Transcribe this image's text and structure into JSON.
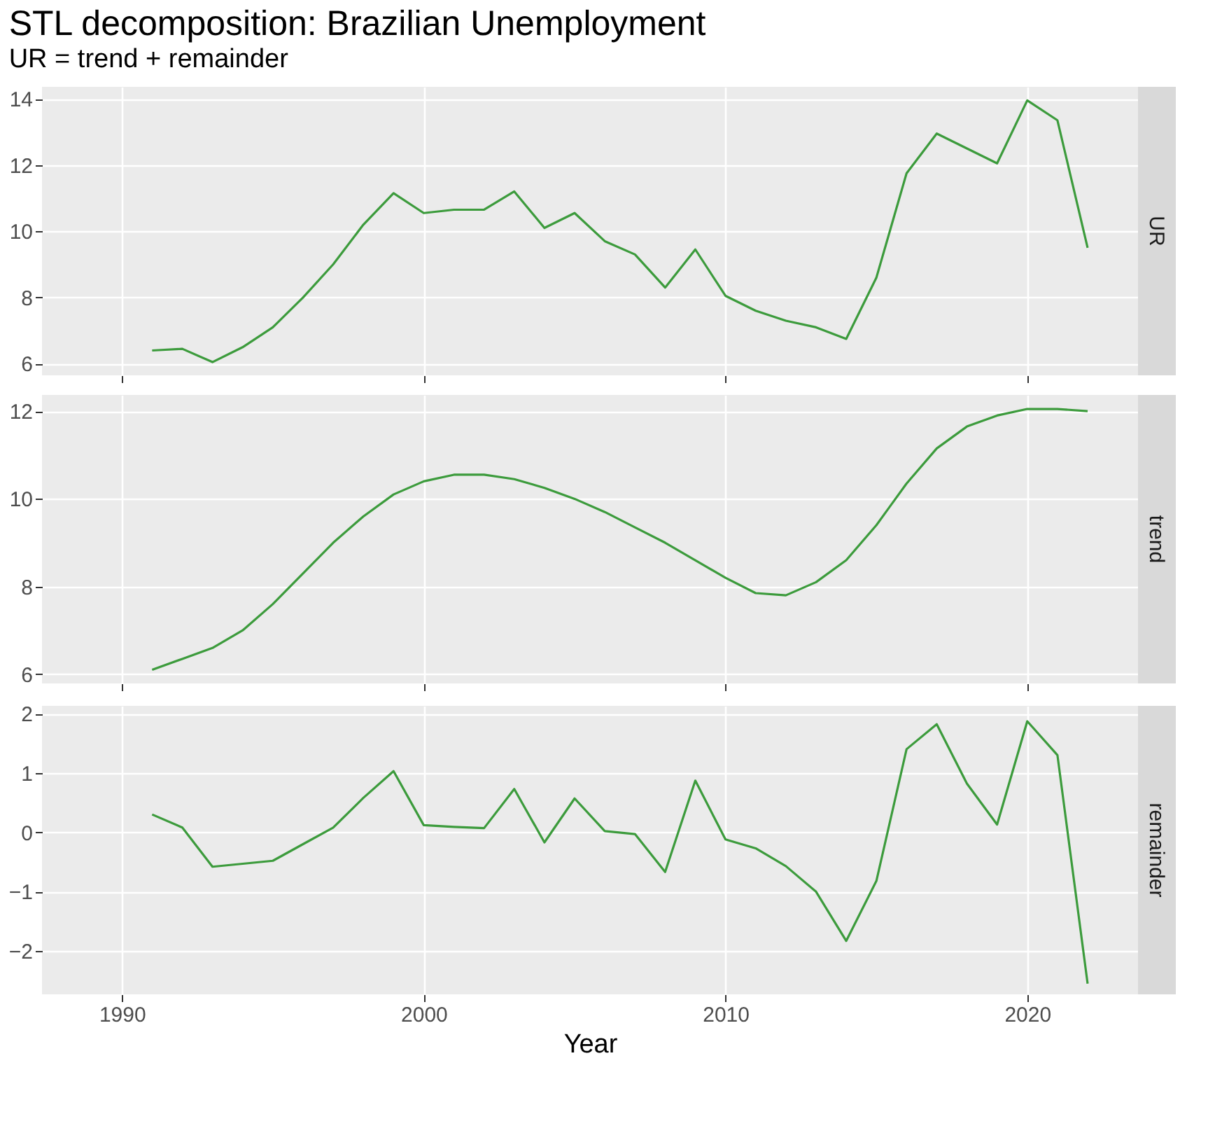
{
  "chart_data": [
    {
      "type": "line",
      "title": "STL decomposition: Brazilian Unemployment",
      "subtitle": "UR = trend + remainder",
      "x": [
        1991,
        1992,
        1993,
        1994,
        1995,
        1996,
        1997,
        1998,
        1999,
        2000,
        2001,
        2002,
        2003,
        2004,
        2005,
        2006,
        2007,
        2008,
        2009,
        2010,
        2011,
        2012,
        2013,
        2014,
        2015,
        2016,
        2017,
        2018,
        2019,
        2020,
        2021,
        2022
      ],
      "series": [
        {
          "name": "UR",
          "color": "#3c9b3c",
          "values": [
            6.4,
            6.45,
            6.05,
            6.5,
            7.1,
            8.0,
            9.0,
            10.2,
            11.15,
            10.55,
            10.65,
            10.65,
            11.2,
            10.1,
            10.55,
            9.7,
            9.3,
            8.3,
            9.45,
            8.05,
            7.6,
            7.3,
            7.1,
            6.75,
            8.6,
            11.75,
            12.95,
            12.5,
            12.05,
            13.95,
            13.35,
            9.5
          ]
        }
      ],
      "xlim": [
        1987.35,
        2023.67
      ],
      "xticks": [
        1990,
        2000,
        2010,
        2020
      ],
      "ylim": [
        5.65,
        14.36
      ],
      "yticks": [
        6,
        8,
        10,
        12,
        14
      ],
      "grid": true,
      "tick_labels": "y"
    },
    {
      "type": "line",
      "x": [
        1991,
        1992,
        1993,
        1994,
        1995,
        1996,
        1997,
        1998,
        1999,
        2000,
        2001,
        2002,
        2003,
        2004,
        2005,
        2006,
        2007,
        2008,
        2009,
        2010,
        2011,
        2012,
        2013,
        2014,
        2015,
        2016,
        2017,
        2018,
        2019,
        2020,
        2021,
        2022
      ],
      "series": [
        {
          "name": "trend",
          "color": "#3c9b3c",
          "values": [
            6.1,
            6.35,
            6.6,
            7.0,
            7.6,
            8.3,
            9.0,
            9.6,
            10.1,
            10.4,
            10.55,
            10.55,
            10.45,
            10.25,
            10.0,
            9.7,
            9.35,
            9.0,
            8.6,
            8.2,
            7.85,
            7.8,
            8.1,
            8.6,
            9.4,
            10.35,
            11.15,
            11.65,
            11.9,
            12.05,
            12.05,
            12.0
          ]
        }
      ],
      "xlim": [
        1987.35,
        2023.67
      ],
      "xticks": [
        1990,
        2000,
        2010,
        2020
      ],
      "ylim": [
        5.79,
        12.37
      ],
      "yticks": [
        6,
        8,
        10,
        12
      ],
      "grid": true,
      "tick_labels": "y"
    },
    {
      "type": "line",
      "xlabel": "Year",
      "x": [
        1991,
        1992,
        1993,
        1994,
        1995,
        1996,
        1997,
        1998,
        1999,
        2000,
        2001,
        2002,
        2003,
        2004,
        2005,
        2006,
        2007,
        2008,
        2009,
        2010,
        2011,
        2012,
        2013,
        2014,
        2015,
        2016,
        2017,
        2018,
        2019,
        2020,
        2021,
        2022
      ],
      "series": [
        {
          "name": "remainder",
          "color": "#3c9b3c",
          "values": [
            0.3,
            0.08,
            -0.58,
            -0.53,
            -0.48,
            -0.2,
            0.08,
            0.58,
            1.03,
            0.12,
            0.09,
            0.07,
            0.73,
            -0.17,
            0.57,
            0.02,
            -0.03,
            -0.67,
            0.87,
            -0.12,
            -0.27,
            -0.57,
            -1.0,
            -1.83,
            -0.82,
            1.4,
            1.82,
            0.82,
            0.13,
            1.87,
            1.3,
            -2.55
          ]
        }
      ],
      "xlim": [
        1987.35,
        2023.67
      ],
      "xticks": [
        1990,
        2000,
        2010,
        2020
      ],
      "ylim": [
        -2.73,
        2.13
      ],
      "yticks": [
        -2,
        -1,
        0,
        1,
        2
      ],
      "grid": true
    }
  ]
}
